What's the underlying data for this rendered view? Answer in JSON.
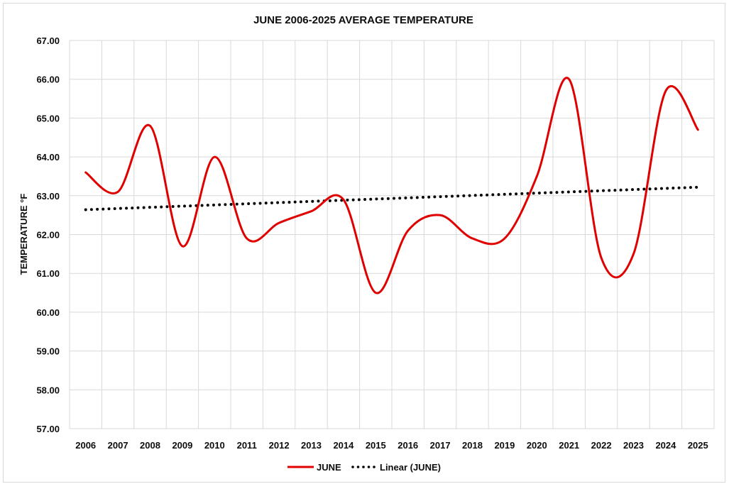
{
  "chart_data": {
    "type": "line",
    "title": "JUNE 2006-2025 AVERAGE TEMPERATURE",
    "xlabel": "",
    "ylabel": "TEMPERATURE °F",
    "categories": [
      "2006",
      "2007",
      "2008",
      "2009",
      "2010",
      "2011",
      "2012",
      "2013",
      "2014",
      "2015",
      "2016",
      "2017",
      "2018",
      "2019",
      "2020",
      "2021",
      "2022",
      "2023",
      "2024",
      "2025"
    ],
    "series": [
      {
        "name": "JUNE",
        "color": "#e00000",
        "style": "smooth-solid",
        "values": [
          63.6,
          63.1,
          64.8,
          61.7,
          64.0,
          61.9,
          62.3,
          62.6,
          62.9,
          60.5,
          62.1,
          62.5,
          61.9,
          61.9,
          63.5,
          66.0,
          61.4,
          61.5,
          65.7,
          64.7
        ]
      },
      {
        "name": "Linear (JUNE)",
        "color": "#000000",
        "style": "dotted",
        "type": "trendline-linear",
        "values": [
          62.64,
          63.22
        ]
      }
    ],
    "ylim": [
      57,
      67
    ],
    "yticks": [
      "57.00",
      "58.00",
      "59.00",
      "60.00",
      "61.00",
      "62.00",
      "63.00",
      "64.00",
      "65.00",
      "66.00",
      "67.00"
    ],
    "grid": true,
    "legend_position": "bottom"
  }
}
